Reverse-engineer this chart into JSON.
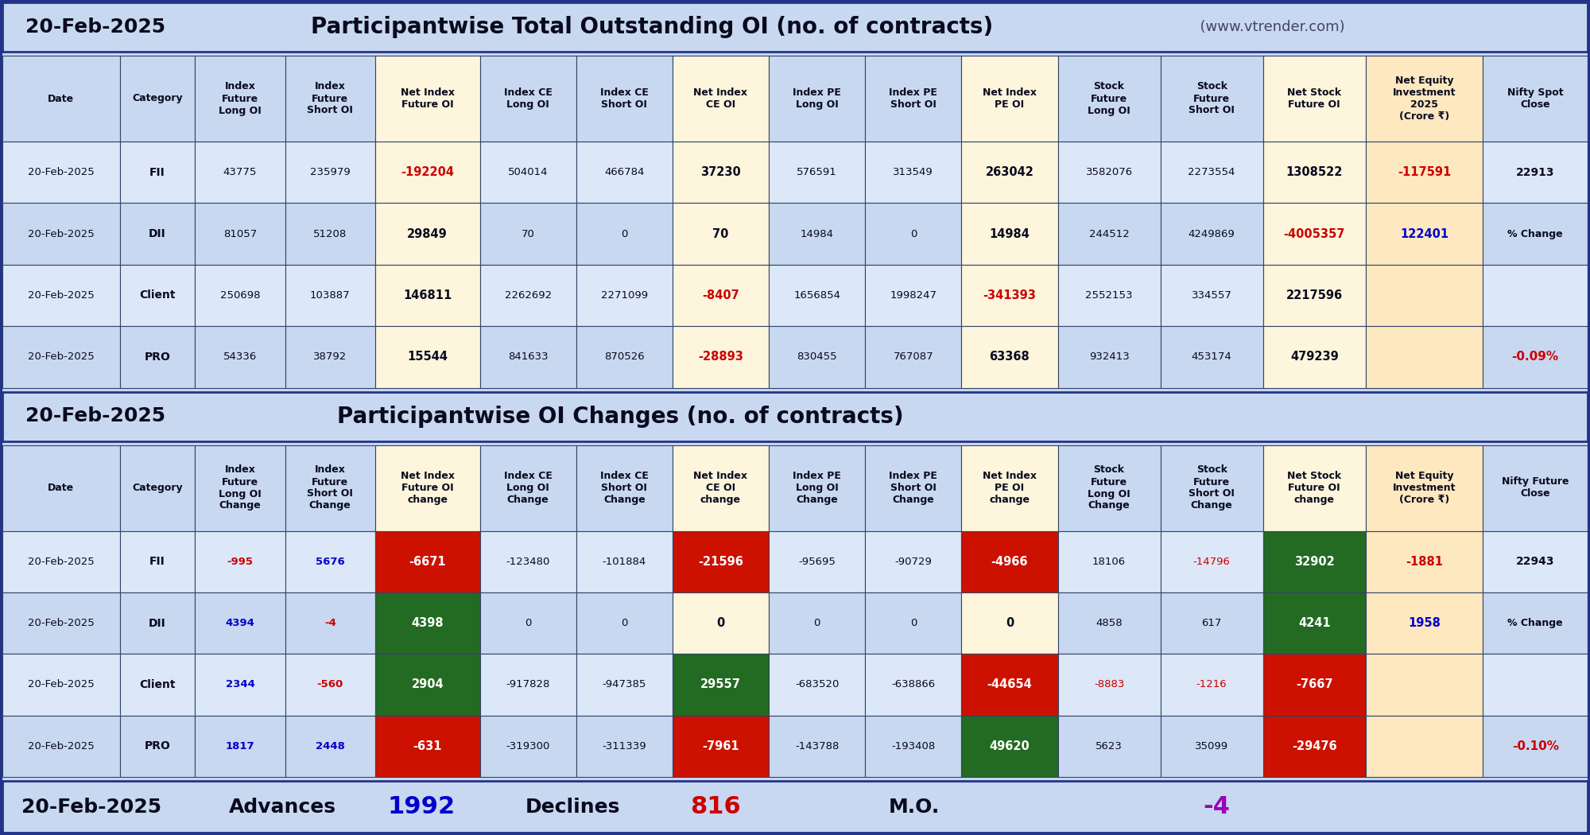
{
  "title1_date": "20-Feb-2025",
  "title1_main": "Participantwise Total Outstanding OI (no. of contracts)",
  "title1_site": "  (www.vtrender.com)",
  "title2_date": "20-Feb-2025",
  "title2_main": "Participantwise OI Changes (no. of contracts)",
  "footer_date": "20-Feb-2025",
  "footer_advances_label": "Advances",
  "footer_advances_val": "1992",
  "footer_declines_label": "Declines",
  "footer_declines_val": "816",
  "footer_mo_label": "M.O.",
  "footer_mo_val": "-4",
  "bg_color": "#c8d8f0",
  "col_highlight1": "#fdf5dc",
  "col_highlight2": "#fde8c0",
  "row_bg_odd": "#dce8f8",
  "row_bg_even": "#c8d8f0",
  "red_cell": "#cc1100",
  "green_cell": "#236b23",
  "table1_headers": [
    "Date",
    "Category",
    "Index\nFuture\nLong OI",
    "Index\nFuture\nShort OI",
    "Net Index\nFuture OI",
    "Index CE\nLong OI",
    "Index CE\nShort OI",
    "Net Index\nCE OI",
    "Index PE\nLong OI",
    "Index PE\nShort OI",
    "Net Index\nPE OI",
    "Stock\nFuture\nLong OI",
    "Stock\nFuture\nShort OI",
    "Net Stock\nFuture OI",
    "Net Equity\nInvestment\n2025\n(Crore ₹)",
    "Nifty Spot\nClose"
  ],
  "table1_rows": [
    [
      "20-Feb-2025",
      "FII",
      "43775",
      "235979",
      "-192204",
      "504014",
      "466784",
      "37230",
      "576591",
      "313549",
      "263042",
      "3582076",
      "2273554",
      "1308522",
      "-117591",
      "22913"
    ],
    [
      "20-Feb-2025",
      "DII",
      "81057",
      "51208",
      "29849",
      "70",
      "0",
      "70",
      "14984",
      "0",
      "14984",
      "244512",
      "4249869",
      "-4005357",
      "122401",
      ""
    ],
    [
      "20-Feb-2025",
      "Client",
      "250698",
      "103887",
      "146811",
      "2262692",
      "2271099",
      "-8407",
      "1656854",
      "1998247",
      "-341393",
      "2552153",
      "334557",
      "2217596",
      "",
      ""
    ],
    [
      "20-Feb-2025",
      "PRO",
      "54336",
      "38792",
      "15544",
      "841633",
      "870526",
      "-28893",
      "830455",
      "767087",
      "63368",
      "932413",
      "453174",
      "479239",
      "",
      ""
    ]
  ],
  "table2_headers": [
    "Date",
    "Category",
    "Index\nFuture\nLong OI\nChange",
    "Index\nFuture\nShort OI\nChange",
    "Net Index\nFuture OI\nchange",
    "Index CE\nLong OI\nChange",
    "Index CE\nShort OI\nChange",
    "Net Index\nCE OI\nchange",
    "Index PE\nLong OI\nChange",
    "Index PE\nShort OI\nChange",
    "Net Index\nPE OI\nchange",
    "Stock\nFuture\nLong OI\nChange",
    "Stock\nFuture\nShort OI\nChange",
    "Net Stock\nFuture OI\nchange",
    "Net Equity\nInvestment\n(Crore ₹)",
    "Nifty Future\nClose"
  ],
  "table2_rows": [
    [
      "20-Feb-2025",
      "FII",
      "-995",
      "5676",
      "-6671",
      "-123480",
      "-101884",
      "-21596",
      "-95695",
      "-90729",
      "-4966",
      "18106",
      "-14796",
      "32902",
      "-1881",
      "22943"
    ],
    [
      "20-Feb-2025",
      "DII",
      "4394",
      "-4",
      "4398",
      "0",
      "0",
      "0",
      "0",
      "0",
      "0",
      "4858",
      "617",
      "4241",
      "1958",
      ""
    ],
    [
      "20-Feb-2025",
      "Client",
      "2344",
      "-560",
      "2904",
      "-917828",
      "-947385",
      "29557",
      "-683520",
      "-638866",
      "-44654",
      "-8883",
      "-1216",
      "-7667",
      "",
      ""
    ],
    [
      "20-Feb-2025",
      "PRO",
      "1817",
      "2448",
      "-631",
      "-319300",
      "-311339",
      "-7961",
      "-143788",
      "-193408",
      "49620",
      "5623",
      "35099",
      "-29476",
      "",
      ""
    ]
  ],
  "pct_change_t1": "-0.09%",
  "pct_change_t2": "-0.10%"
}
